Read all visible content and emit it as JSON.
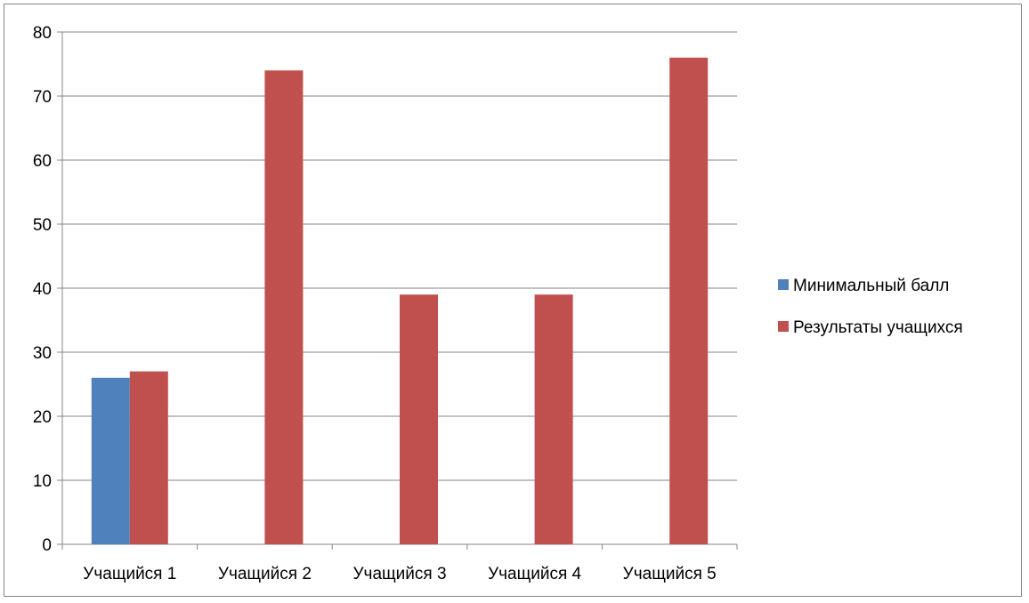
{
  "chart_data": {
    "type": "bar",
    "title": "",
    "xlabel": "",
    "ylabel": "",
    "categories": [
      "Учащийся 1",
      "Учащийся 2",
      "Учащийся 3",
      "Учащийся 4",
      "Учащийся 5"
    ],
    "series": [
      {
        "name": "Минимальный балл",
        "color": "#4f81bd",
        "values": [
          26,
          null,
          null,
          null,
          null
        ]
      },
      {
        "name": "Результаты учащихся",
        "color": "#c0504d",
        "values": [
          27,
          74,
          39,
          39,
          76
        ]
      }
    ],
    "ylim": [
      0,
      80
    ],
    "yticks": [
      0,
      10,
      20,
      30,
      40,
      50,
      60,
      70,
      80
    ],
    "grid": true,
    "legend": "right"
  }
}
